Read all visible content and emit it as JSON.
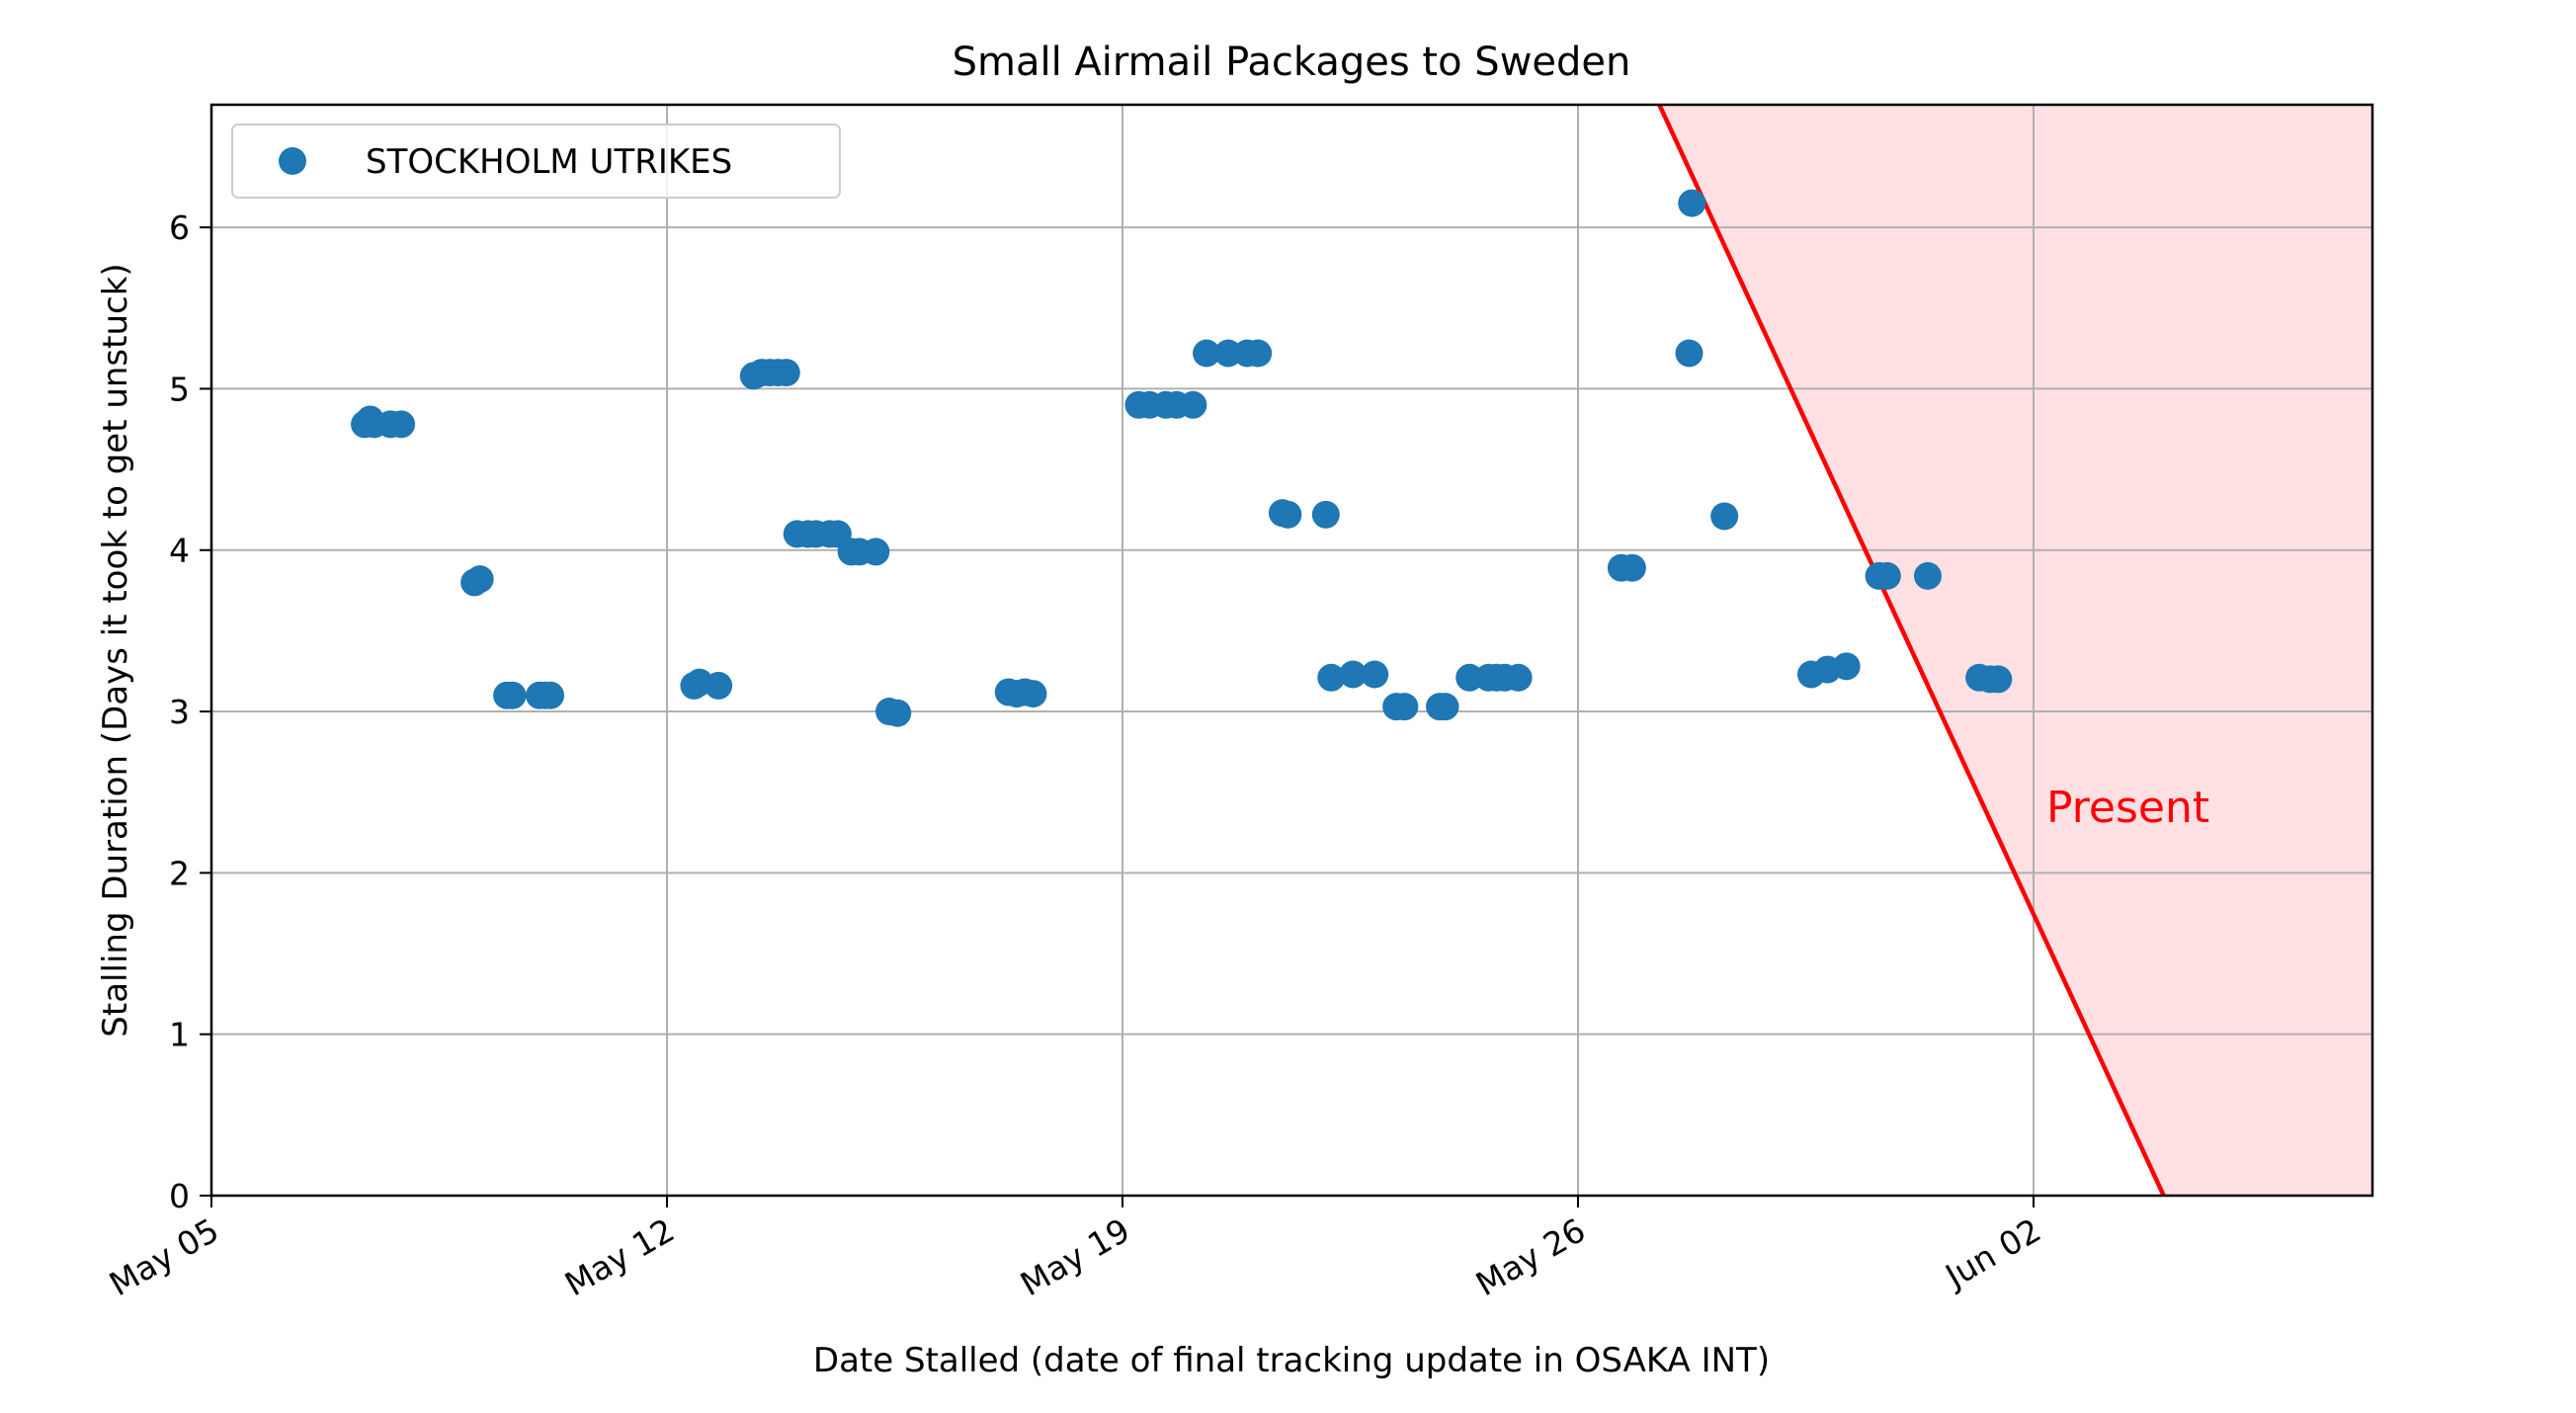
{
  "chart_data": {
    "type": "scatter",
    "title": "Small Airmail Packages to Sweden",
    "xlabel": "Date Stalled (date of final tracking update in OSAKA INT)",
    "ylabel": "Stalling Duration (Days it took to get unstuck)",
    "x_axis_type": "date",
    "xlim": [
      "2023-05-05",
      "2023-06-07T05:00"
    ],
    "ylim": [
      0,
      6.76
    ],
    "x_ticks": [
      {
        "date": "2023-05-05",
        "label": "May 05"
      },
      {
        "date": "2023-05-12",
        "label": "May 12"
      },
      {
        "date": "2023-05-19",
        "label": "May 19"
      },
      {
        "date": "2023-05-26",
        "label": "May 26"
      },
      {
        "date": "2023-06-02",
        "label": "Jun 02"
      }
    ],
    "y_ticks": [
      0,
      1,
      2,
      3,
      4,
      5,
      6
    ],
    "grid": true,
    "legend_position": "upper-left",
    "colors": {
      "series": "#1f77b4",
      "present_line": "#ff0000",
      "present_fill": "#ffe0e3",
      "grid": "#b0b0b0"
    },
    "series": [
      {
        "name": "STOCKHOLM UTRIKES",
        "points": [
          [
            "2023-05-07T08:30",
            4.78
          ],
          [
            "2023-05-07T10:30",
            4.81
          ],
          [
            "2023-05-07T12:00",
            4.78
          ],
          [
            "2023-05-07T18:00",
            4.78
          ],
          [
            "2023-05-07T22:00",
            4.78
          ],
          [
            "2023-05-09T01:00",
            3.8
          ],
          [
            "2023-05-09T03:00",
            3.82
          ],
          [
            "2023-05-09T13:00",
            3.1
          ],
          [
            "2023-05-09T15:00",
            3.1
          ],
          [
            "2023-05-10T01:00",
            3.1
          ],
          [
            "2023-05-10T03:00",
            3.1
          ],
          [
            "2023-05-10T05:00",
            3.1
          ],
          [
            "2023-05-12T10:00",
            3.16
          ],
          [
            "2023-05-12T12:00",
            3.18
          ],
          [
            "2023-05-12T19:00",
            3.16
          ],
          [
            "2023-05-13T08:00",
            5.08
          ],
          [
            "2023-05-13T11:00",
            5.1
          ],
          [
            "2023-05-13T14:00",
            5.1
          ],
          [
            "2023-05-13T17:00",
            5.1
          ],
          [
            "2023-05-13T20:00",
            5.1
          ],
          [
            "2023-05-14T00:00",
            4.1
          ],
          [
            "2023-05-14T04:00",
            4.1
          ],
          [
            "2023-05-14T07:00",
            4.1
          ],
          [
            "2023-05-14T12:00",
            4.1
          ],
          [
            "2023-05-14T15:00",
            4.1
          ],
          [
            "2023-05-14T20:00",
            3.99
          ],
          [
            "2023-05-14T23:00",
            3.99
          ],
          [
            "2023-05-15T05:00",
            3.99
          ],
          [
            "2023-05-15T10:00",
            3.0
          ],
          [
            "2023-05-15T13:00",
            2.99
          ],
          [
            "2023-05-17T06:00",
            3.12
          ],
          [
            "2023-05-17T09:00",
            3.11
          ],
          [
            "2023-05-17T12:00",
            3.12
          ],
          [
            "2023-05-17T15:00",
            3.11
          ],
          [
            "2023-05-19T06:00",
            4.9
          ],
          [
            "2023-05-19T10:00",
            4.9
          ],
          [
            "2023-05-19T16:00",
            4.9
          ],
          [
            "2023-05-19T20:00",
            4.9
          ],
          [
            "2023-05-20T02:00",
            4.9
          ],
          [
            "2023-05-20T07:00",
            5.22
          ],
          [
            "2023-05-20T15:00",
            5.22
          ],
          [
            "2023-05-20T22:00",
            5.22
          ],
          [
            "2023-05-21T02:00",
            5.22
          ],
          [
            "2023-05-21T11:00",
            4.23
          ],
          [
            "2023-05-21T13:00",
            4.22
          ],
          [
            "2023-05-22T03:00",
            4.22
          ],
          [
            "2023-05-22T05:00",
            3.21
          ],
          [
            "2023-05-22T13:00",
            3.23
          ],
          [
            "2023-05-22T21:00",
            3.23
          ],
          [
            "2023-05-23T05:00",
            3.03
          ],
          [
            "2023-05-23T08:00",
            3.03
          ],
          [
            "2023-05-23T21:00",
            3.03
          ],
          [
            "2023-05-23T23:00",
            3.03
          ],
          [
            "2023-05-24T08:00",
            3.21
          ],
          [
            "2023-05-24T15:00",
            3.21
          ],
          [
            "2023-05-24T18:00",
            3.21
          ],
          [
            "2023-05-24T21:00",
            3.21
          ],
          [
            "2023-05-25T02:00",
            3.21
          ],
          [
            "2023-05-26T16:00",
            3.89
          ],
          [
            "2023-05-26T20:00",
            3.89
          ],
          [
            "2023-05-27T17:00",
            5.22
          ],
          [
            "2023-05-27T18:00",
            6.15
          ],
          [
            "2023-05-28T06:00",
            4.21
          ],
          [
            "2023-05-29T14:00",
            3.23
          ],
          [
            "2023-05-29T20:00",
            3.26
          ],
          [
            "2023-05-30T03:00",
            3.28
          ],
          [
            "2023-05-30T15:00",
            3.84
          ],
          [
            "2023-05-30T18:00",
            3.84
          ],
          [
            "2023-05-31T09:00",
            3.84
          ],
          [
            "2023-06-01T04:00",
            3.21
          ],
          [
            "2023-06-01T08:00",
            3.2
          ],
          [
            "2023-06-01T11:00",
            3.2
          ]
        ]
      }
    ],
    "present_line": {
      "label": "Present",
      "points": [
        [
          "2023-05-27T06:00",
          6.76
        ],
        [
          "2023-06-04T00:00",
          0
        ]
      ]
    }
  }
}
